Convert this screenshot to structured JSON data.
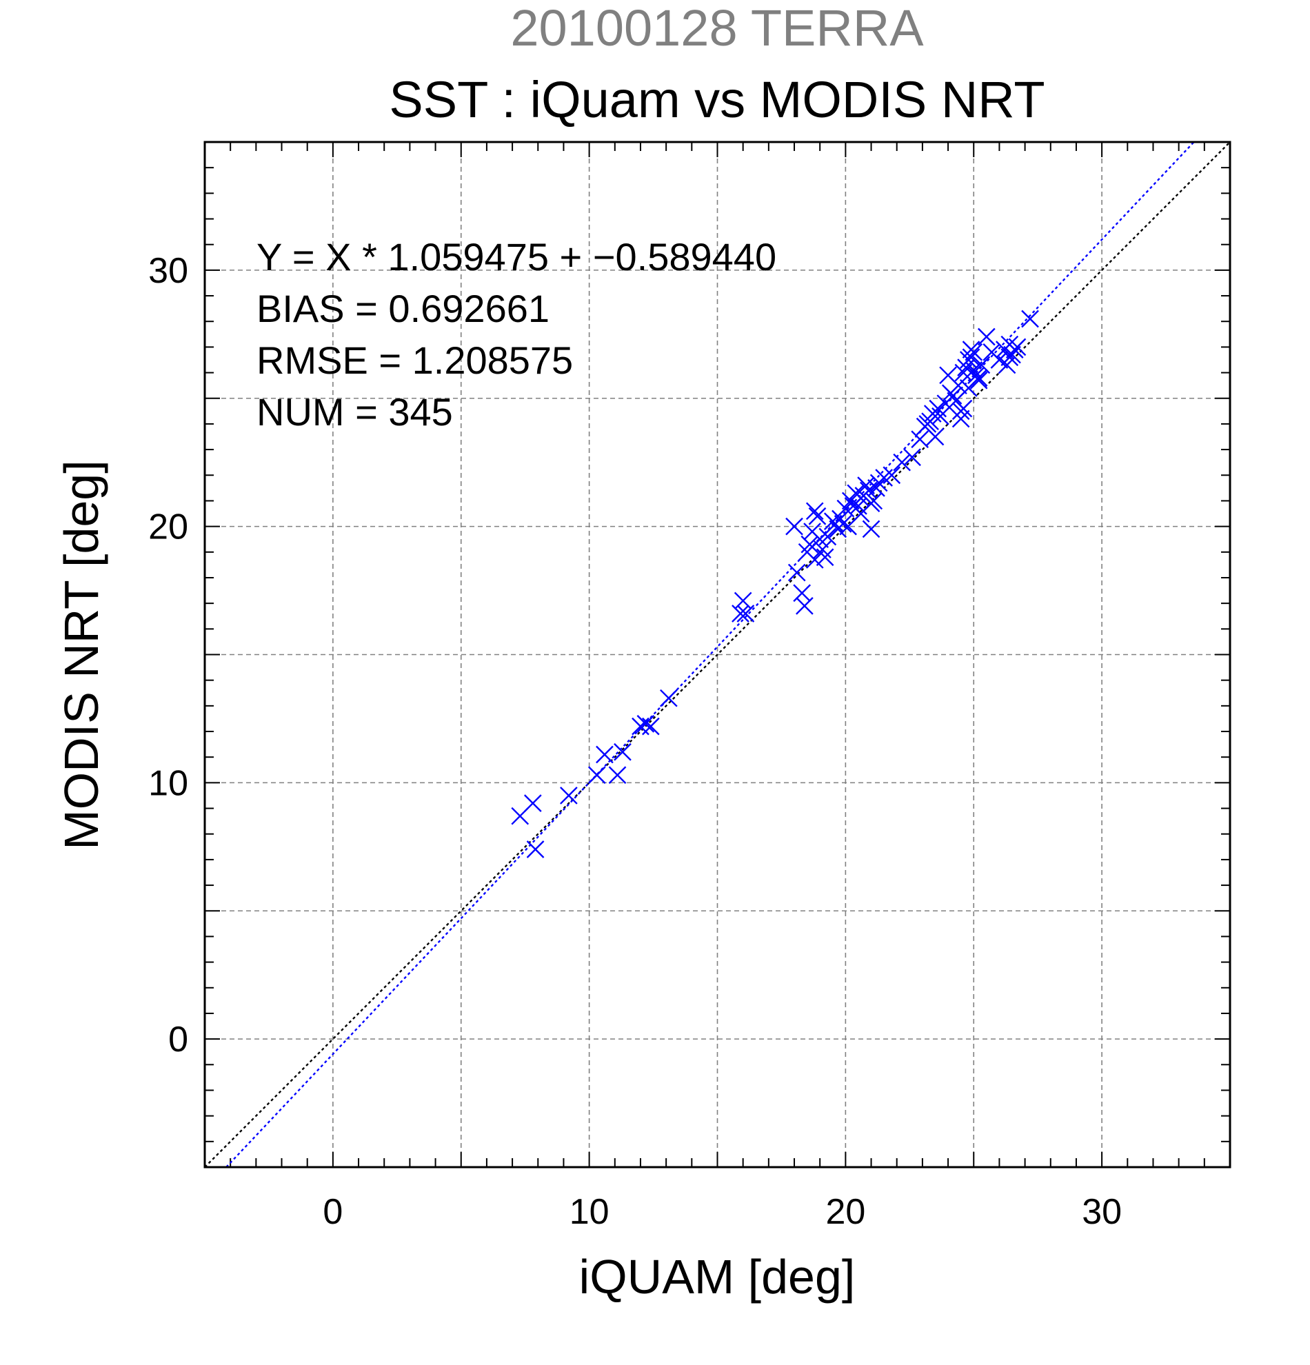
{
  "chart_data": {
    "type": "scatter",
    "title": "20100128 TERRA",
    "subtitle": "SST : iQuam vs MODIS NRT",
    "xlabel": "iQUAM [deg]",
    "ylabel": "MODIS NRT [deg]",
    "xlim": [
      -5,
      35
    ],
    "ylim": [
      -5,
      35
    ],
    "xticks": [
      0,
      10,
      20,
      30
    ],
    "yticks": [
      0,
      10,
      20,
      30
    ],
    "grid": true,
    "colors": {
      "title": "#808080",
      "text": "#000000",
      "points": "#0000ff",
      "fit_line": "#0000ff",
      "identity_line": "#000000",
      "grid": "#808080"
    },
    "stats": {
      "equation": "Y = X * 1.059475 + −0.589440",
      "bias": "BIAS = 0.692661",
      "rmse": "RMSE = 1.208575",
      "num": "NUM = 345"
    },
    "fit": {
      "slope": 1.059475,
      "intercept": -0.58944
    },
    "series": [
      {
        "marker": "x",
        "x": [
          7.3,
          7.8,
          7.9,
          9.2,
          10.3,
          10.6,
          11.1,
          11.3,
          12.0,
          12.2,
          12.4,
          13.1,
          15.9,
          16.0,
          16.1,
          18.0,
          18.1,
          18.3,
          18.4,
          18.6,
          18.8,
          19.0,
          19.2,
          18.5,
          18.7,
          18.9,
          19.1,
          19.3,
          18.8,
          19.5,
          19.7,
          19.9,
          20.1,
          20.3,
          19.6,
          19.8,
          20.0,
          20.2,
          20.4,
          20.6,
          20.8,
          21.0,
          21.2,
          20.5,
          20.7,
          20.9,
          21.1,
          21.3,
          20.6,
          21.0,
          21.5,
          21.8,
          22.2,
          22.6,
          22.9,
          23.1,
          23.3,
          23.5,
          23.7,
          23.2,
          23.4,
          23.6,
          23.9,
          24.1,
          24.3,
          24.5,
          24.0,
          24.2,
          24.4,
          24.6,
          24.8,
          25.0,
          25.2,
          24.7,
          24.9,
          25.1,
          25.3,
          24.5,
          24.8,
          25.0,
          24.9,
          25.5,
          25.7,
          26.0,
          26.2,
          26.4,
          26.5,
          26.6,
          26.3,
          26.7,
          26.4,
          27.2,
          25.2,
          24.6
        ],
        "y": [
          8.7,
          9.2,
          7.4,
          9.5,
          10.3,
          11.1,
          10.3,
          11.2,
          12.2,
          12.3,
          12.2,
          13.3,
          16.6,
          17.1,
          16.6,
          20.0,
          18.2,
          17.4,
          16.9,
          19.3,
          20.6,
          19.5,
          18.8,
          19.0,
          19.8,
          20.4,
          19.1,
          19.6,
          18.7,
          20.2,
          19.9,
          20.1,
          20.0,
          20.8,
          20.1,
          20.3,
          20.7,
          21.0,
          21.3,
          21.1,
          21.6,
          20.9,
          21.5,
          20.8,
          21.2,
          21.4,
          21.0,
          21.7,
          20.5,
          19.9,
          21.9,
          22.0,
          22.5,
          22.7,
          23.4,
          23.9,
          24.1,
          23.5,
          24.3,
          24.0,
          24.4,
          24.6,
          24.8,
          25.2,
          24.9,
          24.5,
          25.9,
          25.1,
          25.5,
          26.0,
          26.5,
          26.8,
          25.7,
          26.2,
          26.6,
          25.9,
          26.3,
          24.2,
          25.4,
          26.1,
          26.9,
          27.4,
          26.8,
          26.5,
          26.9,
          27.1,
          26.7,
          26.9,
          26.3,
          27.0,
          26.6,
          28.1,
          25.8,
          24.6
        ]
      }
    ]
  }
}
